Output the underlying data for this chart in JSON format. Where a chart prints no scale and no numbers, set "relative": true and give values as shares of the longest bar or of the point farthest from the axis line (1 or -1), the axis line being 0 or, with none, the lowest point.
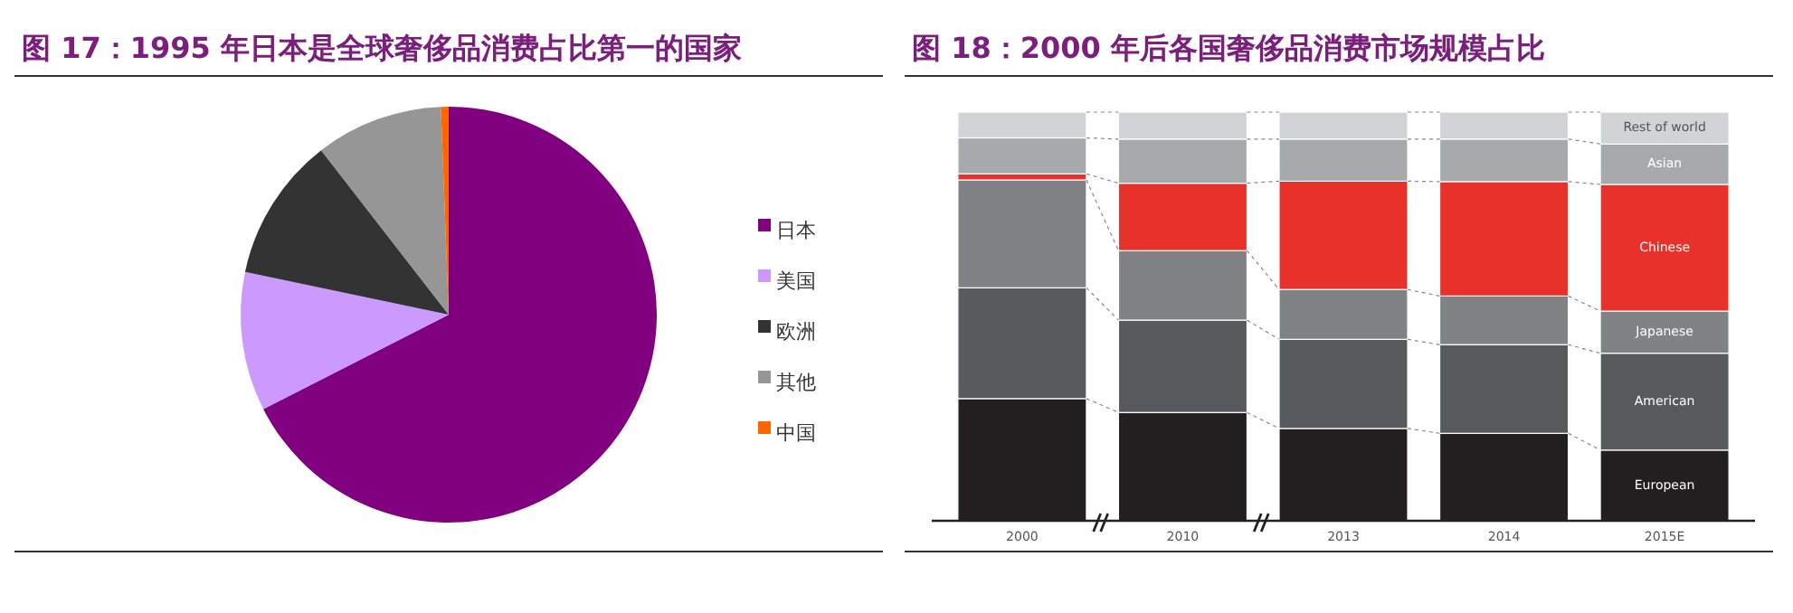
{
  "chart_data": [
    {
      "type": "pie",
      "title": "图 17：1995 年日本是全球奢侈品消费占比第一的国家",
      "categories": [
        "日本",
        "美国",
        "欧洲",
        "其他",
        "中国"
      ],
      "values": [
        67.5,
        10.8,
        11.2,
        9.9,
        0.6
      ],
      "colors": [
        "#800080",
        "#cc99ff",
        "#333333",
        "#969696",
        "#ff6600"
      ],
      "legend": "right"
    },
    {
      "type": "bar",
      "title": "图 18：2000 年后各国奢侈品消费市场规模占比",
      "categories": [
        "2000",
        "2010",
        "2013",
        "2014",
        "2015E"
      ],
      "stacked": true,
      "relative": true,
      "series": [
        {
          "name": "European",
          "color": "#231f20",
          "values": [
            0.299,
            0.265,
            0.226,
            0.214,
            0.173
          ]
        },
        {
          "name": "American",
          "color": "#58595b",
          "values": [
            0.271,
            0.226,
            0.218,
            0.217,
            0.237
          ]
        },
        {
          "name": "Japanese",
          "color": "#808285",
          "values": [
            0.264,
            0.17,
            0.122,
            0.119,
            0.103
          ]
        },
        {
          "name": "Chinese",
          "color": "#e8312a",
          "values": [
            0.015,
            0.165,
            0.265,
            0.28,
            0.31
          ]
        },
        {
          "name": "Asian",
          "color": "#a7a9ac",
          "values": [
            0.088,
            0.108,
            0.103,
            0.104,
            0.099
          ]
        },
        {
          "name": "Rest of world",
          "color": "#d1d3d4",
          "values": [
            0.063,
            0.066,
            0.066,
            0.066,
            0.078
          ]
        }
      ]
    }
  ]
}
